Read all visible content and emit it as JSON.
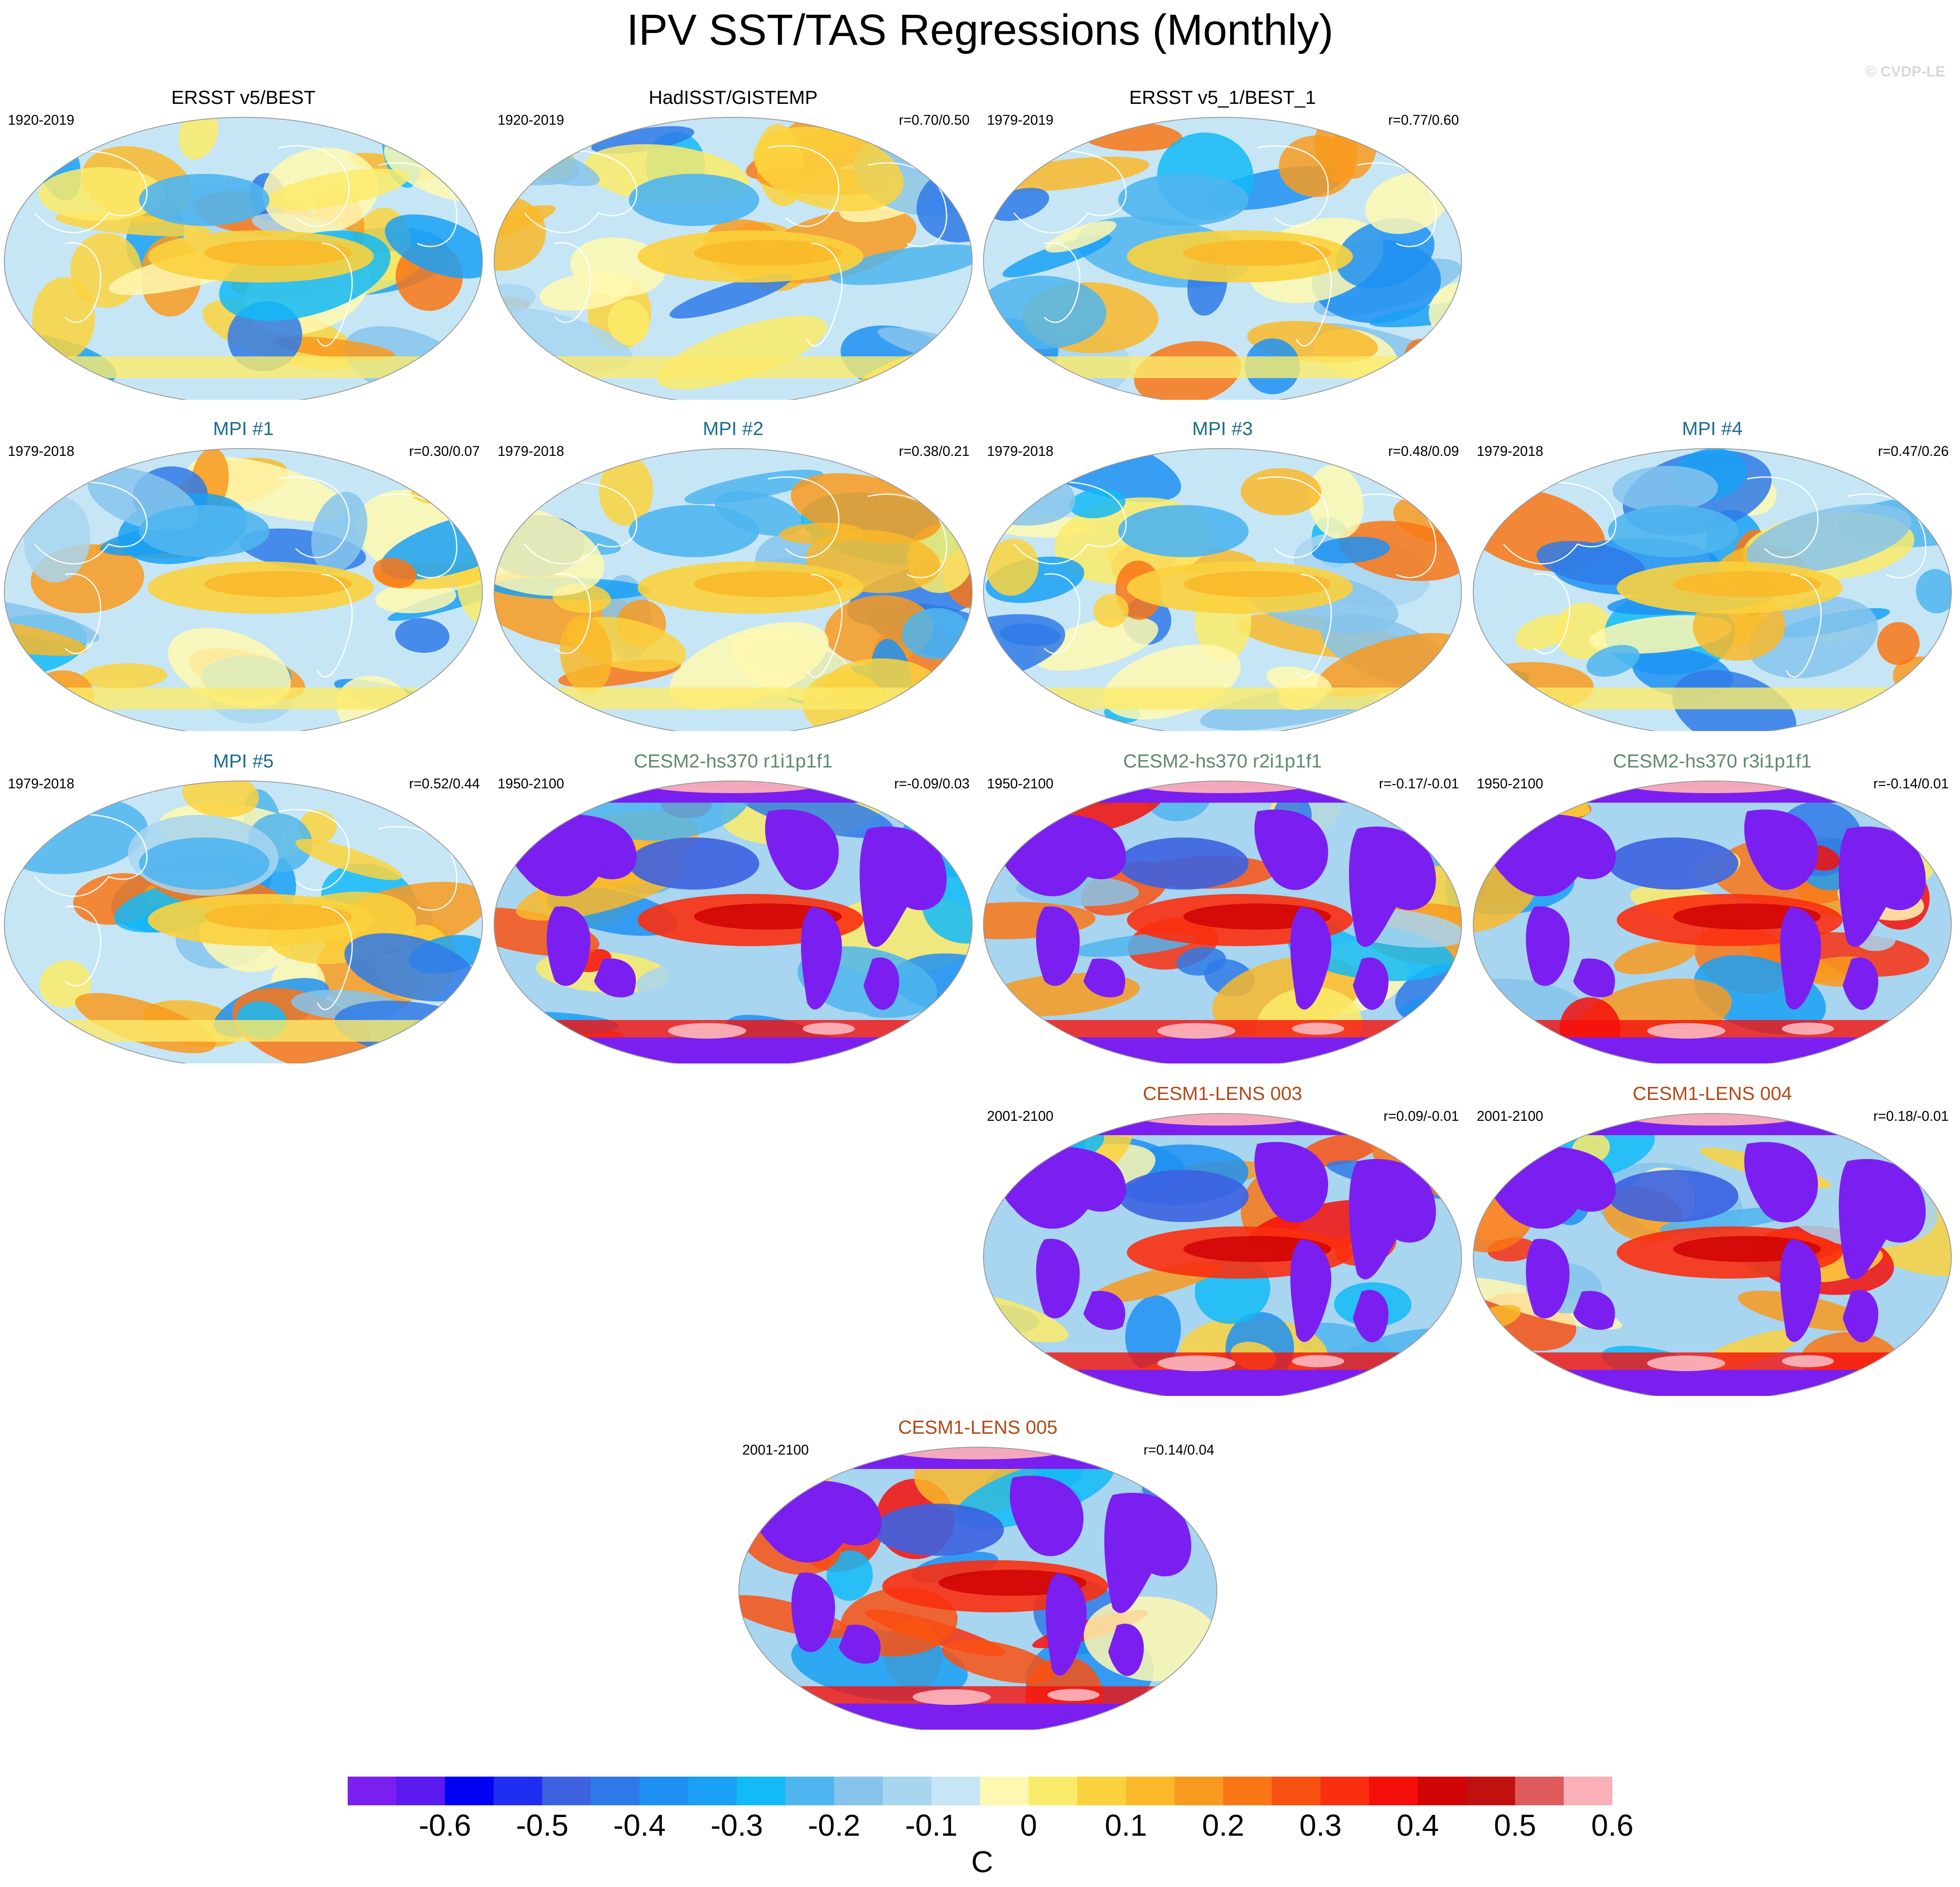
{
  "figure": {
    "title": "IPV SST/TAS Regressions (Monthly)",
    "watermark": "© CVDP-LE",
    "units": "C"
  },
  "colors": {
    "ocean_pattern": "#fbeb6a",
    "ocean_cool": "#9fd1f4",
    "land_mask": "#7b1ff0",
    "sea_ice": "#fbb0b8",
    "title_obs": "#000000",
    "title_mpi": "#1d6b8c",
    "title_cesm2": "#5f8a6a",
    "title_cesm1": "#b04a1a"
  },
  "panels": [
    {
      "id": "p1",
      "title": "ERSST v5/BEST",
      "period": "1920-2019",
      "corr": "",
      "group": "obs",
      "masked_land": false
    },
    {
      "id": "p2",
      "title": "HadISST/GISTEMP",
      "period": "1920-2019",
      "corr": "r=0.70/0.50",
      "group": "obs",
      "masked_land": false
    },
    {
      "id": "p3",
      "title": "ERSST v5_1/BEST_1",
      "period": "1979-2019",
      "corr": "r=0.77/0.60",
      "group": "obs",
      "masked_land": false
    },
    {
      "id": "p4",
      "title": "MPI #1",
      "period": "1979-2018",
      "corr": "r=0.30/0.07",
      "group": "mpi",
      "masked_land": false
    },
    {
      "id": "p5",
      "title": "MPI #2",
      "period": "1979-2018",
      "corr": "r=0.38/0.21",
      "group": "mpi",
      "masked_land": false
    },
    {
      "id": "p6",
      "title": "MPI #3",
      "period": "1979-2018",
      "corr": "r=0.48/0.09",
      "group": "mpi",
      "masked_land": false
    },
    {
      "id": "p7",
      "title": "MPI #4",
      "period": "1979-2018",
      "corr": "r=0.47/0.26",
      "group": "mpi",
      "masked_land": false
    },
    {
      "id": "p8",
      "title": "MPI #5",
      "period": "1979-2018",
      "corr": "r=0.52/0.44",
      "group": "mpi",
      "masked_land": false
    },
    {
      "id": "p9",
      "title": "CESM2-hs370 r1i1p1f1",
      "period": "1950-2100",
      "corr": "r=-0.09/0.03",
      "group": "cesm2",
      "masked_land": true
    },
    {
      "id": "p10",
      "title": "CESM2-hs370 r2i1p1f1",
      "period": "1950-2100",
      "corr": "r=-0.17/-0.01",
      "group": "cesm2",
      "masked_land": true
    },
    {
      "id": "p11",
      "title": "CESM2-hs370 r3i1p1f1",
      "period": "1950-2100",
      "corr": "r=-0.14/0.01",
      "group": "cesm2",
      "masked_land": true
    },
    {
      "id": "p12",
      "title": "CESM1-LENS 003",
      "period": "2001-2100",
      "corr": "r=0.09/-0.01",
      "group": "cesm1",
      "masked_land": true
    },
    {
      "id": "p13",
      "title": "CESM1-LENS 004",
      "period": "2001-2100",
      "corr": "r=0.18/-0.01",
      "group": "cesm1",
      "masked_land": true
    },
    {
      "id": "p14",
      "title": "CESM1-LENS 005",
      "period": "2001-2100",
      "corr": "r=0.14/0.04",
      "group": "cesm1",
      "masked_land": true
    }
  ],
  "colorbar": {
    "colors": [
      "#7b1ff0",
      "#5a1af0",
      "#0000f5",
      "#1f2ef0",
      "#3c62e0",
      "#2f7ae8",
      "#1f90f2",
      "#1aa0f5",
      "#12baf7",
      "#4fb5ee",
      "#86c4ec",
      "#a8d5f0",
      "#c6e6f6",
      "#fff8b0",
      "#fbeb6a",
      "#fbd23d",
      "#f9b92a",
      "#f89a1e",
      "#f97515",
      "#f95112",
      "#f92f10",
      "#f50f0b",
      "#d00606",
      "#c01010",
      "#df5b5b",
      "#fbb0b8"
    ],
    "tick_labels": [
      "-0.6",
      "-0.5",
      "-0.4",
      "-0.3",
      "-0.2",
      "-0.1",
      "0",
      "0.1",
      "0.2",
      "0.3",
      "0.4",
      "0.5",
      "0.6"
    ]
  }
}
